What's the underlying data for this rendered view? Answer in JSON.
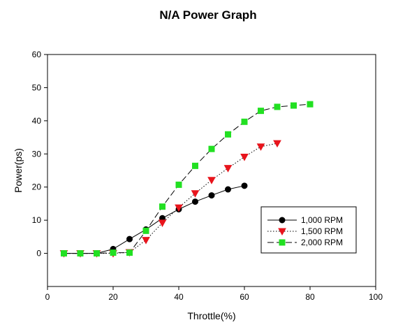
{
  "chart_data": {
    "type": "line",
    "title": "N/A Power Graph",
    "xlabel": "Throttle(%)",
    "ylabel": "Power(ps)",
    "xlim": [
      0,
      100
    ],
    "ylim": [
      -10,
      60
    ],
    "xticks": [
      0,
      20,
      40,
      60,
      80,
      100
    ],
    "yticks": [
      0,
      10,
      20,
      30,
      40,
      50,
      60
    ],
    "grid": false,
    "legend_position": "lower-right",
    "series": [
      {
        "name": "1,000 RPM",
        "marker": "circle",
        "line_style": "solid",
        "color": "#000000",
        "x": [
          5,
          10,
          15,
          20,
          25,
          30,
          35,
          40,
          45,
          50,
          55,
          60
        ],
        "y": [
          0,
          0,
          0,
          1.3,
          4.3,
          7.2,
          10.6,
          13.3,
          15.6,
          17.5,
          19.3,
          20.4
        ]
      },
      {
        "name": "1,500 RPM",
        "marker": "triangle-down",
        "line_style": "dotted",
        "color": "#e8141c",
        "x": [
          5,
          10,
          15,
          20,
          25,
          30,
          35,
          40,
          45,
          50,
          55,
          60,
          65,
          70
        ],
        "y": [
          0,
          0,
          0,
          0,
          0.3,
          4,
          9.2,
          13.8,
          18.1,
          22.1,
          25.7,
          29.1,
          32.2,
          33.2
        ]
      },
      {
        "name": "2,000 RPM",
        "marker": "square",
        "line_style": "dashed",
        "color": "#22e022",
        "x": [
          5,
          10,
          15,
          20,
          25,
          30,
          35,
          40,
          45,
          50,
          55,
          60,
          65,
          70,
          75,
          80
        ],
        "y": [
          0,
          0,
          0,
          0.2,
          0.2,
          6.8,
          14.1,
          20.7,
          26.4,
          31.5,
          35.9,
          39.7,
          43,
          44.2,
          44.6,
          45
        ]
      }
    ]
  }
}
